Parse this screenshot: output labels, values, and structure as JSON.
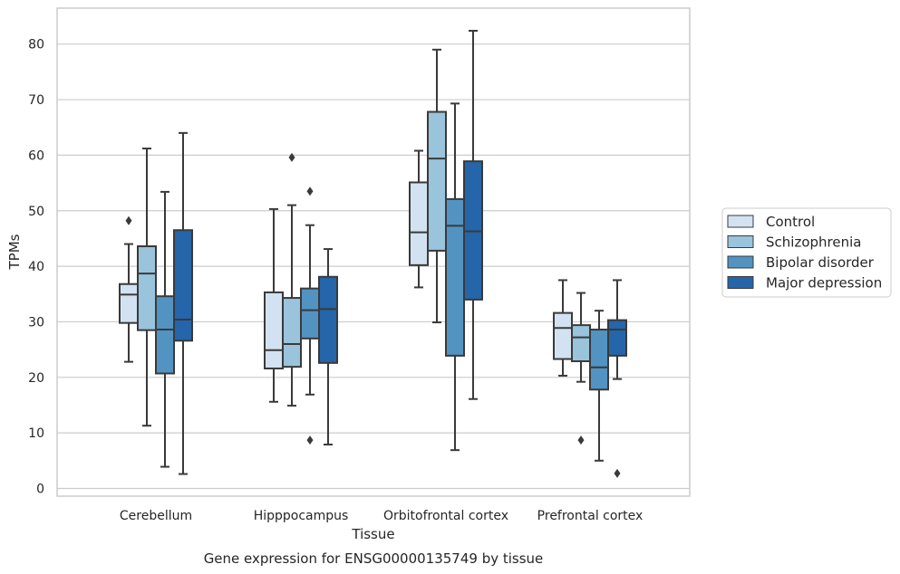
{
  "chart_data": {
    "type": "box",
    "xlabel": "Tissue",
    "ylabel": "TPMs",
    "caption": "Gene expression for ENSG00000135749 by tissue",
    "ylim": [
      -1,
      86
    ],
    "yticks": [
      0,
      10,
      20,
      30,
      40,
      50,
      60,
      70,
      80
    ],
    "grid": "horizontal",
    "legend_position": "right",
    "categories": [
      "Cerebellum",
      "Hipppocampus",
      "Orbitofrontal cortex",
      "Prefrontal cortex"
    ],
    "series": [
      {
        "name": "Control",
        "color": "#d2e2f1",
        "boxes": [
          {
            "whisker_low": 22.8,
            "q1": 29.8,
            "median": 34.9,
            "q3": 36.8,
            "whisker_high": 44.0,
            "outliers": [
              48.2
            ]
          },
          {
            "whisker_low": 15.6,
            "q1": 21.6,
            "median": 24.9,
            "q3": 35.3,
            "whisker_high": 50.3,
            "outliers": []
          },
          {
            "whisker_low": 36.2,
            "q1": 40.2,
            "median": 46.1,
            "q3": 55.1,
            "whisker_high": 60.8,
            "outliers": []
          },
          {
            "whisker_low": 20.3,
            "q1": 23.3,
            "median": 28.9,
            "q3": 31.6,
            "whisker_high": 37.5,
            "outliers": []
          }
        ]
      },
      {
        "name": "Schizophrenia",
        "color": "#9ac3dc",
        "boxes": [
          {
            "whisker_low": 11.3,
            "q1": 28.5,
            "median": 38.7,
            "q3": 43.6,
            "whisker_high": 61.2,
            "outliers": []
          },
          {
            "whisker_low": 14.9,
            "q1": 21.9,
            "median": 26.0,
            "q3": 34.3,
            "whisker_high": 51.0,
            "outliers": [
              59.6
            ]
          },
          {
            "whisker_low": 29.9,
            "q1": 42.8,
            "median": 59.4,
            "q3": 67.8,
            "whisker_high": 79.0,
            "outliers": []
          },
          {
            "whisker_low": 19.2,
            "q1": 22.9,
            "median": 27.2,
            "q3": 29.4,
            "whisker_high": 35.2,
            "outliers": [
              8.7
            ]
          }
        ]
      },
      {
        "name": "Bipolar disorder",
        "color": "#5293c2",
        "boxes": [
          {
            "whisker_low": 3.9,
            "q1": 20.7,
            "median": 28.6,
            "q3": 34.6,
            "whisker_high": 53.4,
            "outliers": []
          },
          {
            "whisker_low": 16.9,
            "q1": 27.0,
            "median": 32.1,
            "q3": 36.0,
            "whisker_high": 47.4,
            "outliers": [
              53.5,
              8.7
            ]
          },
          {
            "whisker_low": 6.9,
            "q1": 23.9,
            "median": 47.3,
            "q3": 52.1,
            "whisker_high": 69.3,
            "outliers": []
          },
          {
            "whisker_low": 5.0,
            "q1": 17.8,
            "median": 21.8,
            "q3": 28.6,
            "whisker_high": 32.0,
            "outliers": []
          }
        ]
      },
      {
        "name": "Major depression",
        "color": "#2565a9",
        "boxes": [
          {
            "whisker_low": 2.6,
            "q1": 26.6,
            "median": 30.4,
            "q3": 46.5,
            "whisker_high": 64.0,
            "outliers": []
          },
          {
            "whisker_low": 7.9,
            "q1": 22.6,
            "median": 32.3,
            "q3": 38.1,
            "whisker_high": 43.1,
            "outliers": []
          },
          {
            "whisker_low": 16.1,
            "q1": 34.0,
            "median": 46.3,
            "q3": 58.9,
            "whisker_high": 82.4,
            "outliers": []
          },
          {
            "whisker_low": 19.7,
            "q1": 23.9,
            "median": 28.6,
            "q3": 30.3,
            "whisker_high": 37.5,
            "outliers": [
              2.7
            ]
          }
        ]
      }
    ]
  },
  "colors": {
    "edge": "#3a3a3a",
    "grid": "#cccccc",
    "frame": "#cccccc"
  }
}
